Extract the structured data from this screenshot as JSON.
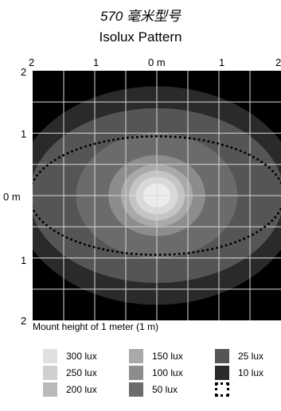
{
  "model_title": "570 毫米型号",
  "chart_title": "Isolux Pattern",
  "caption": "Mount height of 1 meter (1 m)",
  "x_ticks": [
    "2",
    "1",
    "0 m",
    "1",
    "2"
  ],
  "y_ticks": [
    "2",
    "1",
    "0 m",
    "1",
    "2"
  ],
  "chart_data": {
    "type": "isolux",
    "x_range_m": [
      -2,
      2
    ],
    "y_range_m": [
      -2,
      2
    ],
    "grid": true,
    "background_color": "#000000",
    "contours": [
      {
        "level": "10 lux",
        "color": "#2a2a2a",
        "rx": 2.3,
        "ry": 1.75
      },
      {
        "level": "25 lux",
        "color": "#555555",
        "rx": 2.05,
        "ry": 1.4
      },
      {
        "level": "50 lux",
        "color": "#6b6b6b",
        "rx": 1.3,
        "ry": 1.0
      },
      {
        "level": "100 lux",
        "color": "#8c8c8c",
        "rx": 0.78,
        "ry": 0.65
      },
      {
        "level": "150 lux",
        "color": "#a9a9a9",
        "rx": 0.58,
        "ry": 0.5
      },
      {
        "level": "200 lux",
        "color": "#c4c4c4",
        "rx": 0.45,
        "ry": 0.4
      },
      {
        "level": "250 lux",
        "color": "#d9d9d9",
        "rx": 0.34,
        "ry": 0.3
      },
      {
        "level": "300 lux",
        "color": "#ececec",
        "rx": 0.22,
        "ry": 0.19
      }
    ],
    "dotted_boundary": {
      "rx": 2.05,
      "ry": 0.95
    }
  },
  "legend": [
    {
      "label": "300 lux",
      "color": "#e0e0e0"
    },
    {
      "label": "150 lux",
      "color": "#a9a9a9"
    },
    {
      "label": "25 lux",
      "color": "#555555"
    },
    {
      "label": "250 lux",
      "color": "#cfcfcf"
    },
    {
      "label": "100 lux",
      "color": "#8c8c8c"
    },
    {
      "label": "10 lux",
      "color": "#2a2a2a"
    },
    {
      "label": "200 lux",
      "color": "#b9b9b9"
    },
    {
      "label": "50 lux",
      "color": "#6b6b6b"
    },
    {
      "label": "",
      "color": "dotted"
    }
  ]
}
